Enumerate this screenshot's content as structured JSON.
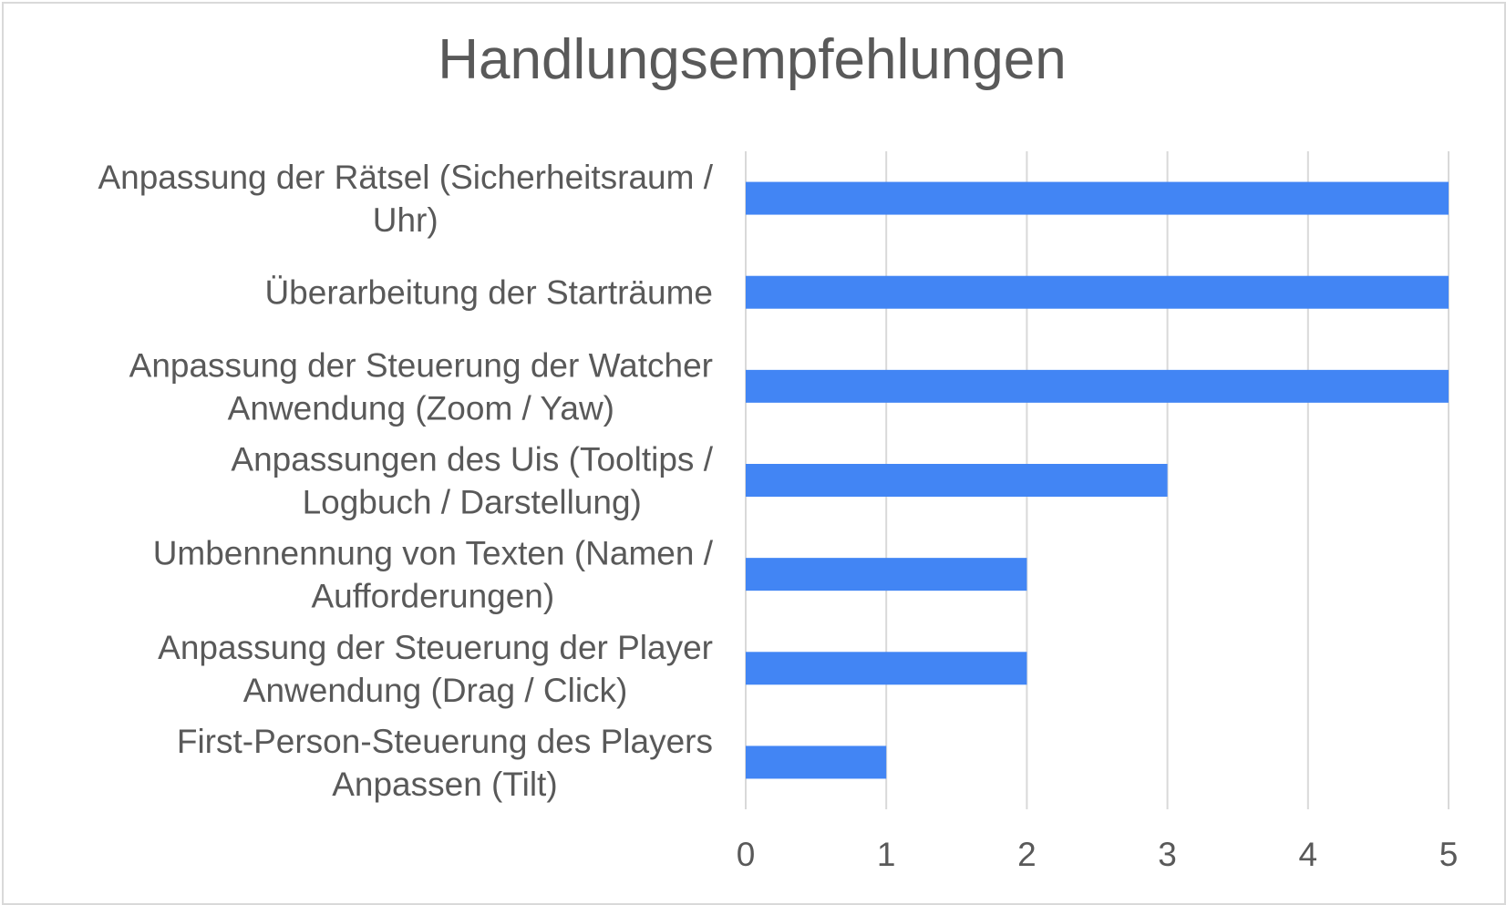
{
  "chart_data": {
    "type": "bar",
    "orientation": "horizontal",
    "title": "Handlungsempfehlungen",
    "xlabel": "",
    "ylabel": "",
    "categories": [
      [
        "Anpassung der Rätsel (Sicherheitsraum /",
        "Uhr)"
      ],
      [
        "Überarbeitung der Starträume"
      ],
      [
        "Anpassung der Steuerung der Watcher",
        "Anwendung (Zoom / Yaw)"
      ],
      [
        "Anpassungen des Uis (Tooltips /",
        "Logbuch / Darstellung)"
      ],
      [
        "Umbennennung von Texten (Namen /",
        "Aufforderungen)"
      ],
      [
        "Anpassung der Steuerung der Player",
        "Anwendung (Drag / Click)"
      ],
      [
        "First-Person-Steuerung des Players",
        "Anpassen (Tilt)"
      ]
    ],
    "values": [
      5,
      5,
      5,
      3,
      2,
      2,
      1
    ],
    "xlim": [
      0,
      5
    ],
    "xticks": [
      "0",
      "1",
      "2",
      "3",
      "4",
      "5"
    ],
    "grid": true,
    "legend": "none",
    "bar_color": "#4285f4",
    "grid_color": "#d9d9d9",
    "text_color": "#595959"
  }
}
